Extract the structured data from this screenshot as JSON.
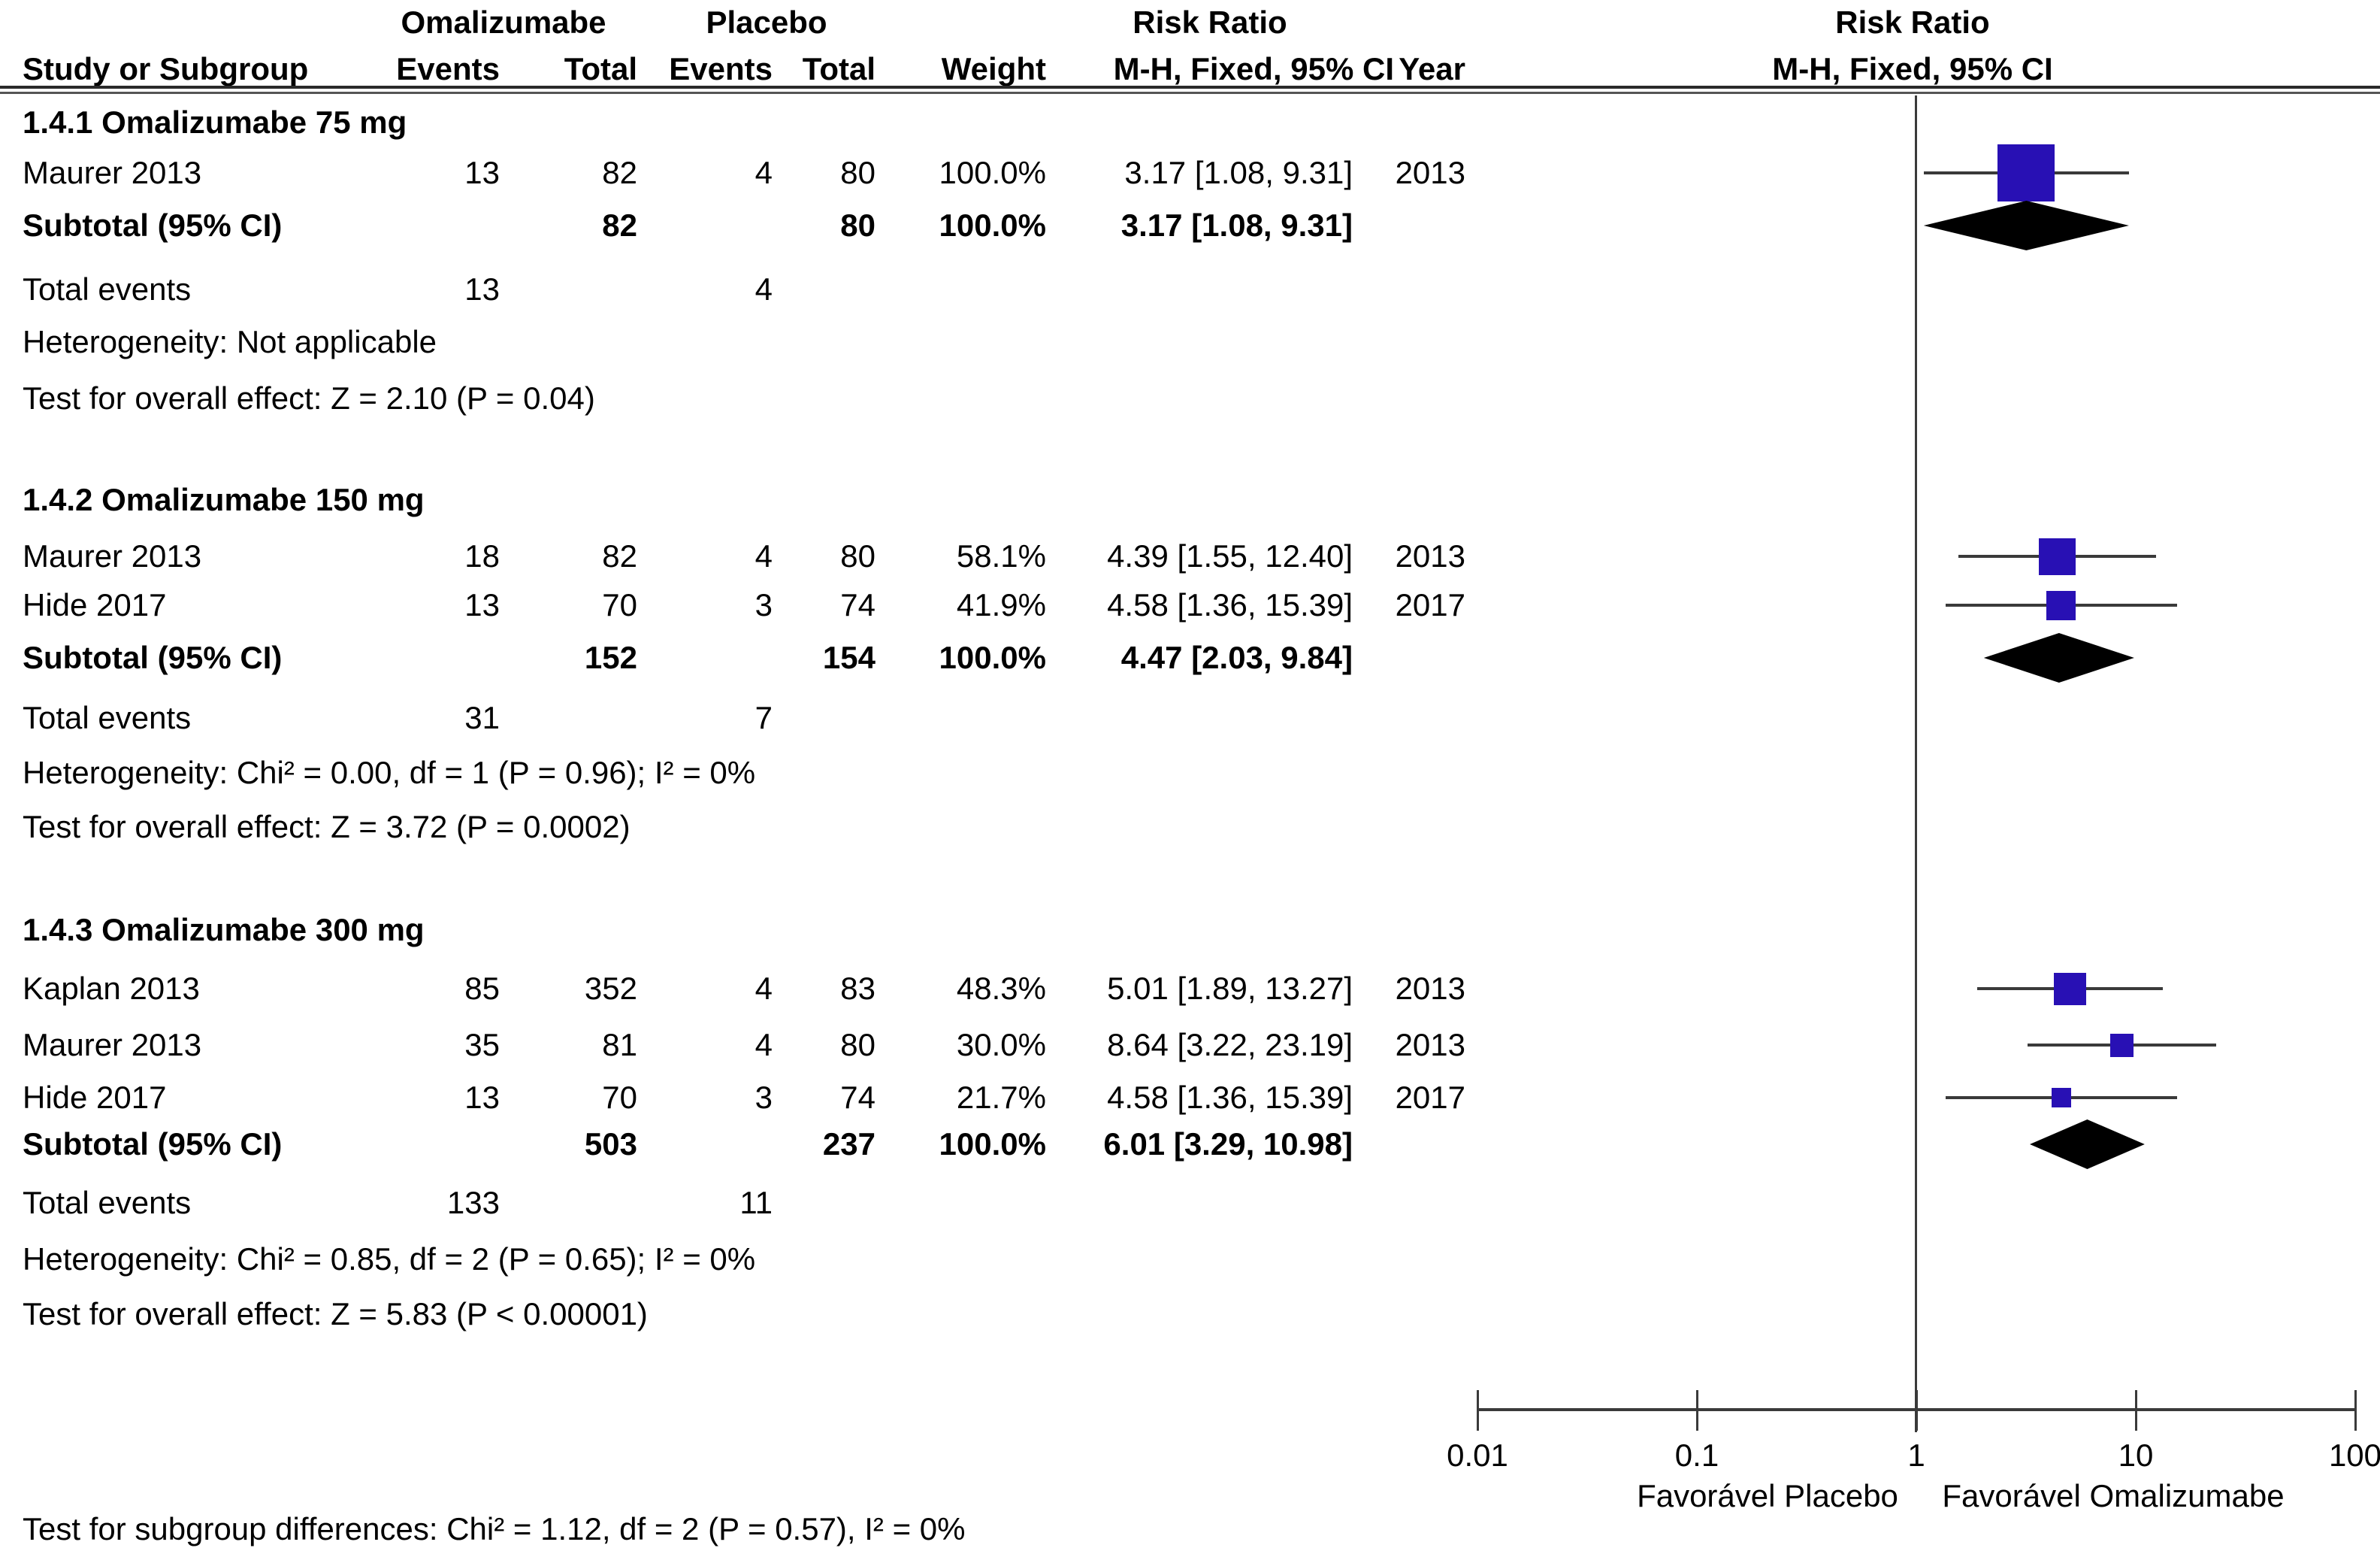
{
  "accent_color": "#2810b4",
  "line_color": "#3a3a3a",
  "header": {
    "group1": "Omalizumabe",
    "group2": "Placebo",
    "risk_ratio_left": "Risk Ratio",
    "risk_ratio_right": "Risk Ratio",
    "col_study": "Study or Subgroup",
    "col_events1": "Events",
    "col_total1": "Total",
    "col_events2": "Events",
    "col_total2": "Total",
    "col_weight": "Weight",
    "col_mh_left": "M-H, Fixed, 95% CI",
    "col_year": "Year",
    "col_mh_right": "M-H, Fixed, 95% CI"
  },
  "footer": "Test for subgroup differences: Chi² = 1.12, df = 2 (P = 0.57), I² = 0%",
  "chart_data": {
    "type": "forest",
    "x_scale": "log10",
    "x_min": 0.01,
    "x_max": 100,
    "null_line": 1,
    "axis_ticks": [
      "0.01",
      "0.1",
      "1",
      "10",
      "100"
    ],
    "axis_label_left": "Favorável Placebo",
    "axis_label_right": "Favorável Omalizumabe",
    "subgroups": [
      {
        "label": "1.4.1 Omalizumabe 75 mg",
        "studies": [
          {
            "name": "Maurer 2013",
            "events1": "13",
            "total1": "82",
            "events2": "4",
            "total2": "80",
            "weight": "100.0%",
            "weight_pct": 100.0,
            "rr": 3.17,
            "ci_low": 1.08,
            "ci_high": 9.31,
            "ci_text": "3.17 [1.08, 9.31]",
            "year": "2013"
          }
        ],
        "subtotal": {
          "label": "Subtotal (95% CI)",
          "total1": "82",
          "total2": "80",
          "weight": "100.0%",
          "rr": 3.17,
          "ci_low": 1.08,
          "ci_high": 9.31,
          "ci_text": "3.17 [1.08, 9.31]"
        },
        "total_events": {
          "label": "Total events",
          "events1": "13",
          "events2": "4"
        },
        "heterogeneity": "Heterogeneity: Not applicable",
        "overall_effect": "Test for overall effect: Z = 2.10 (P = 0.04)"
      },
      {
        "label": "1.4.2 Omalizumabe 150 mg",
        "studies": [
          {
            "name": "Maurer 2013",
            "events1": "18",
            "total1": "82",
            "events2": "4",
            "total2": "80",
            "weight": "58.1%",
            "weight_pct": 58.1,
            "rr": 4.39,
            "ci_low": 1.55,
            "ci_high": 12.4,
            "ci_text": "4.39 [1.55, 12.40]",
            "year": "2013"
          },
          {
            "name": "Hide 2017",
            "events1": "13",
            "total1": "70",
            "events2": "3",
            "total2": "74",
            "weight": "41.9%",
            "weight_pct": 41.9,
            "rr": 4.58,
            "ci_low": 1.36,
            "ci_high": 15.39,
            "ci_text": "4.58 [1.36, 15.39]",
            "year": "2017"
          }
        ],
        "subtotal": {
          "label": "Subtotal (95% CI)",
          "total1": "152",
          "total2": "154",
          "weight": "100.0%",
          "rr": 4.47,
          "ci_low": 2.03,
          "ci_high": 9.84,
          "ci_text": "4.47 [2.03, 9.84]"
        },
        "total_events": {
          "label": "Total events",
          "events1": "31",
          "events2": "7"
        },
        "heterogeneity": "Heterogeneity: Chi² = 0.00, df = 1 (P = 0.96); I² = 0%",
        "overall_effect": "Test for overall effect: Z = 3.72 (P = 0.0002)"
      },
      {
        "label": "1.4.3 Omalizumabe 300 mg",
        "studies": [
          {
            "name": "Kaplan 2013",
            "events1": "85",
            "total1": "352",
            "events2": "4",
            "total2": "83",
            "weight": "48.3%",
            "weight_pct": 48.3,
            "rr": 5.01,
            "ci_low": 1.89,
            "ci_high": 13.27,
            "ci_text": "5.01 [1.89, 13.27]",
            "year": "2013"
          },
          {
            "name": "Maurer 2013",
            "events1": "35",
            "total1": "81",
            "events2": "4",
            "total2": "80",
            "weight": "30.0%",
            "weight_pct": 30.0,
            "rr": 8.64,
            "ci_low": 3.22,
            "ci_high": 23.19,
            "ci_text": "8.64 [3.22, 23.19]",
            "year": "2013"
          },
          {
            "name": "Hide 2017",
            "events1": "13",
            "total1": "70",
            "events2": "3",
            "total2": "74",
            "weight": "21.7%",
            "weight_pct": 21.7,
            "rr": 4.58,
            "ci_low": 1.36,
            "ci_high": 15.39,
            "ci_text": "4.58 [1.36, 15.39]",
            "year": "2017"
          }
        ],
        "subtotal": {
          "label": "Subtotal (95% CI)",
          "total1": "503",
          "total2": "237",
          "weight": "100.0%",
          "rr": 6.01,
          "ci_low": 3.29,
          "ci_high": 10.98,
          "ci_text": "6.01 [3.29, 10.98]"
        },
        "total_events": {
          "label": "Total events",
          "events1": "133",
          "events2": "11"
        },
        "heterogeneity": "Heterogeneity: Chi² = 0.85, df = 2 (P = 0.65); I² = 0%",
        "overall_effect": "Test for overall effect: Z = 5.83 (P < 0.00001)"
      }
    ]
  }
}
